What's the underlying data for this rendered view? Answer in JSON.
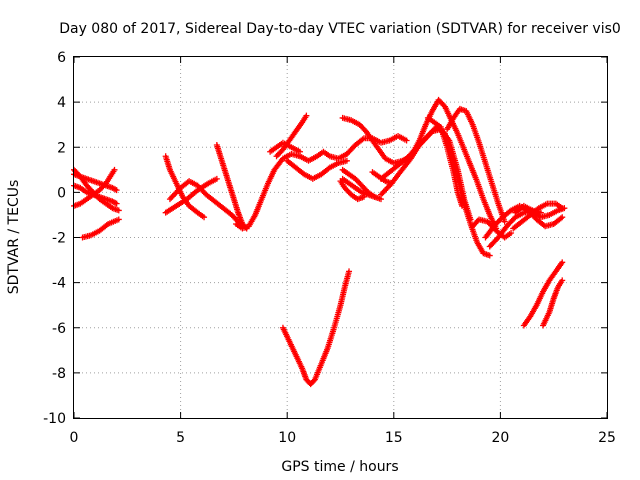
{
  "chart_data": {
    "type": "scatter",
    "title": "Day 080 of 2017, Sidereal Day-to-day VTEC variation (SDTVAR) for receiver vis0",
    "xlabel": "GPS time / hours",
    "ylabel": "SDTVAR / TECUs",
    "xlim": [
      0,
      25
    ],
    "ylim": [
      -10,
      6
    ],
    "xticks": [
      0,
      5,
      10,
      15,
      20,
      25
    ],
    "yticks": [
      -10,
      -8,
      -6,
      -4,
      -2,
      0,
      2,
      4,
      6
    ],
    "grid": true,
    "marker": "plus",
    "color": "#ff0000",
    "series": [
      {
        "points": [
          [
            0.0,
            0.8
          ],
          [
            0.3,
            0.7
          ],
          [
            0.6,
            0.6
          ],
          [
            0.9,
            0.5
          ],
          [
            1.2,
            0.4
          ],
          [
            1.5,
            0.3
          ],
          [
            1.8,
            0.2
          ],
          [
            2.0,
            0.1
          ]
        ]
      },
      {
        "points": [
          [
            0.0,
            0.3
          ],
          [
            0.3,
            0.2
          ],
          [
            0.6,
            0.0
          ],
          [
            0.9,
            -0.1
          ],
          [
            1.2,
            -0.2
          ],
          [
            1.5,
            -0.3
          ],
          [
            1.8,
            -0.4
          ],
          [
            2.0,
            -0.5
          ]
        ]
      },
      {
        "points": [
          [
            0.0,
            -0.6
          ],
          [
            0.3,
            -0.5
          ],
          [
            0.6,
            -0.3
          ],
          [
            0.9,
            -0.1
          ],
          [
            1.2,
            0.1
          ],
          [
            1.5,
            0.4
          ],
          [
            1.7,
            0.7
          ],
          [
            1.9,
            1.0
          ]
        ]
      },
      {
        "points": [
          [
            0.0,
            1.0
          ],
          [
            0.3,
            0.7
          ],
          [
            0.6,
            0.3
          ],
          [
            0.9,
            0.0
          ],
          [
            1.2,
            -0.3
          ],
          [
            1.5,
            -0.5
          ],
          [
            1.8,
            -0.7
          ],
          [
            2.1,
            -0.8
          ]
        ]
      },
      {
        "points": [
          [
            0.4,
            -2.0
          ],
          [
            0.8,
            -1.9
          ],
          [
            1.2,
            -1.7
          ],
          [
            1.6,
            -1.4
          ],
          [
            2.1,
            -1.2
          ]
        ]
      },
      {
        "points": [
          [
            4.3,
            -0.9
          ],
          [
            4.8,
            -0.6
          ],
          [
            5.3,
            -0.3
          ],
          [
            5.8,
            0.1
          ],
          [
            6.3,
            0.4
          ],
          [
            6.7,
            0.6
          ]
        ]
      },
      {
        "points": [
          [
            4.3,
            1.6
          ],
          [
            4.5,
            1.0
          ],
          [
            4.8,
            0.4
          ],
          [
            5.1,
            -0.2
          ],
          [
            5.4,
            -0.6
          ],
          [
            5.8,
            -0.9
          ],
          [
            6.1,
            -1.1
          ]
        ]
      },
      {
        "points": [
          [
            4.5,
            -0.3
          ],
          [
            5.0,
            0.2
          ],
          [
            5.4,
            0.5
          ],
          [
            5.8,
            0.3
          ],
          [
            6.2,
            -0.1
          ],
          [
            6.6,
            -0.4
          ],
          [
            7.0,
            -0.7
          ],
          [
            7.4,
            -1.0
          ],
          [
            7.8,
            -1.4
          ]
        ]
      },
      {
        "points": [
          [
            6.7,
            2.1
          ],
          [
            6.9,
            1.5
          ],
          [
            7.1,
            0.9
          ],
          [
            7.3,
            0.3
          ],
          [
            7.5,
            -0.3
          ],
          [
            7.7,
            -0.9
          ],
          [
            7.9,
            -1.4
          ],
          [
            8.1,
            -1.6
          ]
        ]
      },
      {
        "points": [
          [
            7.6,
            -1.4
          ],
          [
            7.9,
            -1.6
          ],
          [
            8.2,
            -1.5
          ],
          [
            8.5,
            -1.0
          ],
          [
            8.8,
            -0.3
          ],
          [
            9.1,
            0.4
          ],
          [
            9.4,
            1.0
          ],
          [
            9.8,
            1.5
          ],
          [
            10.2,
            1.7
          ],
          [
            10.6,
            1.6
          ]
        ]
      },
      {
        "points": [
          [
            9.2,
            1.8
          ],
          [
            9.5,
            2.0
          ],
          [
            9.8,
            2.2
          ],
          [
            10.2,
            2.0
          ],
          [
            10.6,
            1.8
          ]
        ]
      },
      {
        "points": [
          [
            9.5,
            1.6
          ],
          [
            9.8,
            1.9
          ],
          [
            10.1,
            2.3
          ],
          [
            10.4,
            2.7
          ],
          [
            10.7,
            3.1
          ],
          [
            10.9,
            3.4
          ]
        ]
      },
      {
        "points": [
          [
            10.6,
            1.6
          ],
          [
            11.0,
            1.4
          ],
          [
            11.4,
            1.6
          ],
          [
            11.7,
            1.8
          ],
          [
            12.0,
            1.6
          ],
          [
            12.4,
            1.5
          ],
          [
            12.8,
            1.7
          ]
        ]
      },
      {
        "points": [
          [
            10.0,
            1.4
          ],
          [
            10.4,
            1.1
          ],
          [
            10.8,
            0.8
          ],
          [
            11.2,
            0.6
          ],
          [
            11.6,
            0.8
          ],
          [
            12.0,
            1.1
          ],
          [
            12.4,
            1.3
          ],
          [
            12.8,
            1.4
          ]
        ]
      },
      {
        "points": [
          [
            9.8,
            -6.0
          ],
          [
            10.1,
            -6.6
          ],
          [
            10.4,
            -7.2
          ],
          [
            10.7,
            -7.8
          ],
          [
            10.9,
            -8.3
          ],
          [
            11.1,
            -8.5
          ],
          [
            11.3,
            -8.3
          ],
          [
            11.6,
            -7.6
          ],
          [
            11.9,
            -6.9
          ],
          [
            12.2,
            -6.0
          ],
          [
            12.5,
            -5.0
          ],
          [
            12.7,
            -4.2
          ],
          [
            12.9,
            -3.5
          ]
        ]
      },
      {
        "points": [
          [
            12.6,
            3.3
          ],
          [
            13.0,
            3.2
          ],
          [
            13.4,
            3.0
          ],
          [
            13.7,
            2.7
          ],
          [
            14.0,
            2.3
          ],
          [
            14.3,
            1.9
          ],
          [
            14.6,
            1.5
          ],
          [
            15.0,
            1.3
          ],
          [
            15.4,
            1.4
          ],
          [
            15.8,
            1.6
          ]
        ]
      },
      {
        "points": [
          [
            12.8,
            1.7
          ],
          [
            13.2,
            2.1
          ],
          [
            13.6,
            2.4
          ],
          [
            14.0,
            2.4
          ],
          [
            14.4,
            2.2
          ],
          [
            14.8,
            2.3
          ],
          [
            15.2,
            2.5
          ],
          [
            15.6,
            2.3
          ]
        ]
      },
      {
        "points": [
          [
            12.6,
            0.6
          ],
          [
            12.9,
            0.4
          ],
          [
            13.2,
            0.2
          ],
          [
            13.5,
            0.0
          ],
          [
            13.8,
            -0.1
          ],
          [
            14.1,
            -0.2
          ],
          [
            14.4,
            -0.3
          ]
        ]
      },
      {
        "points": [
          [
            12.6,
            1.0
          ],
          [
            12.9,
            0.8
          ],
          [
            13.2,
            0.6
          ],
          [
            13.5,
            0.3
          ],
          [
            13.8,
            0.0
          ],
          [
            14.1,
            -0.2
          ]
        ]
      },
      {
        "points": [
          [
            12.5,
            0.5
          ],
          [
            12.7,
            0.2
          ],
          [
            13.0,
            -0.1
          ],
          [
            13.3,
            -0.3
          ],
          [
            13.6,
            -0.2
          ]
        ]
      },
      {
        "points": [
          [
            14.0,
            0.9
          ],
          [
            14.3,
            0.7
          ],
          [
            14.6,
            0.5
          ],
          [
            14.9,
            0.4
          ]
        ]
      },
      {
        "points": [
          [
            14.4,
            0.6
          ],
          [
            14.8,
            0.9
          ],
          [
            15.2,
            1.2
          ],
          [
            15.6,
            1.5
          ],
          [
            16.0,
            1.9
          ],
          [
            16.4,
            2.3
          ],
          [
            16.8,
            2.7
          ],
          [
            17.2,
            2.8
          ],
          [
            17.6,
            2.3
          ],
          [
            18.0,
            1.0
          ],
          [
            18.3,
            -0.3
          ],
          [
            18.6,
            -1.2
          ]
        ]
      },
      {
        "points": [
          [
            14.4,
            -0.1
          ],
          [
            14.9,
            0.4
          ],
          [
            15.3,
            0.9
          ],
          [
            15.8,
            1.5
          ],
          [
            16.2,
            2.1
          ],
          [
            16.6,
            2.5
          ],
          [
            17.0,
            2.9
          ],
          [
            17.4,
            2.6
          ],
          [
            17.7,
            1.6
          ],
          [
            18.0,
            0.6
          ],
          [
            18.3,
            -0.5
          ],
          [
            18.6,
            -1.4
          ],
          [
            18.9,
            -2.2
          ],
          [
            19.2,
            -2.7
          ],
          [
            19.5,
            -2.8
          ]
        ]
      },
      {
        "points": [
          [
            15.8,
            1.6
          ],
          [
            16.2,
            2.3
          ],
          [
            16.5,
            3.0
          ],
          [
            16.8,
            3.6
          ],
          [
            17.1,
            4.1
          ],
          [
            17.4,
            3.8
          ],
          [
            17.7,
            3.2
          ],
          [
            18.0,
            2.6
          ],
          [
            18.3,
            1.9
          ],
          [
            18.6,
            1.2
          ],
          [
            18.9,
            0.5
          ],
          [
            19.2,
            -0.3
          ],
          [
            19.5,
            -1.0
          ],
          [
            19.8,
            -1.6
          ]
        ]
      },
      {
        "points": [
          [
            16.6,
            3.3
          ],
          [
            16.9,
            3.1
          ],
          [
            17.2,
            2.9
          ],
          [
            17.5,
            2.0
          ],
          [
            17.8,
            0.9
          ],
          [
            18.0,
            0.0
          ],
          [
            18.2,
            -0.6
          ]
        ]
      },
      {
        "points": [
          [
            17.5,
            2.8
          ],
          [
            17.8,
            3.3
          ],
          [
            18.1,
            3.7
          ],
          [
            18.4,
            3.6
          ],
          [
            18.7,
            3.0
          ],
          [
            19.0,
            2.2
          ],
          [
            19.3,
            1.3
          ],
          [
            19.6,
            0.4
          ],
          [
            19.9,
            -0.5
          ],
          [
            20.2,
            -1.3
          ]
        ]
      },
      {
        "points": [
          [
            18.7,
            -1.5
          ],
          [
            19.0,
            -1.2
          ],
          [
            19.4,
            -1.3
          ],
          [
            19.8,
            -1.7
          ],
          [
            20.2,
            -2.0
          ],
          [
            20.5,
            -1.8
          ]
        ]
      },
      {
        "points": [
          [
            19.5,
            -2.4
          ],
          [
            19.9,
            -2.0
          ],
          [
            20.3,
            -1.5
          ],
          [
            20.7,
            -1.1
          ],
          [
            21.1,
            -0.9
          ],
          [
            21.5,
            -0.8
          ],
          [
            21.9,
            -0.9
          ]
        ]
      },
      {
        "points": [
          [
            19.3,
            -2.0
          ],
          [
            19.7,
            -1.5
          ],
          [
            20.1,
            -1.1
          ],
          [
            20.5,
            -0.8
          ],
          [
            20.9,
            -0.6
          ],
          [
            21.3,
            -0.8
          ],
          [
            21.7,
            -1.2
          ],
          [
            22.1,
            -1.5
          ],
          [
            22.5,
            -1.4
          ],
          [
            22.9,
            -1.1
          ]
        ]
      },
      {
        "points": [
          [
            20.6,
            -1.6
          ],
          [
            21.0,
            -1.3
          ],
          [
            21.4,
            -1.0
          ],
          [
            21.8,
            -0.7
          ],
          [
            22.2,
            -0.5
          ],
          [
            22.6,
            -0.5
          ],
          [
            22.9,
            -0.7
          ]
        ]
      },
      {
        "points": [
          [
            20.7,
            -0.9
          ],
          [
            21.1,
            -0.6
          ],
          [
            21.5,
            -0.8
          ],
          [
            21.9,
            -1.1
          ],
          [
            22.3,
            -1.0
          ],
          [
            22.7,
            -0.8
          ],
          [
            23.0,
            -0.7
          ]
        ]
      },
      {
        "points": [
          [
            21.1,
            -5.9
          ],
          [
            21.4,
            -5.5
          ],
          [
            21.7,
            -5.0
          ],
          [
            22.0,
            -4.4
          ],
          [
            22.3,
            -3.9
          ],
          [
            22.6,
            -3.5
          ],
          [
            22.9,
            -3.1
          ]
        ]
      },
      {
        "points": [
          [
            22.0,
            -5.9
          ],
          [
            22.3,
            -5.3
          ],
          [
            22.5,
            -4.7
          ],
          [
            22.7,
            -4.2
          ],
          [
            22.9,
            -3.9
          ]
        ]
      }
    ]
  }
}
